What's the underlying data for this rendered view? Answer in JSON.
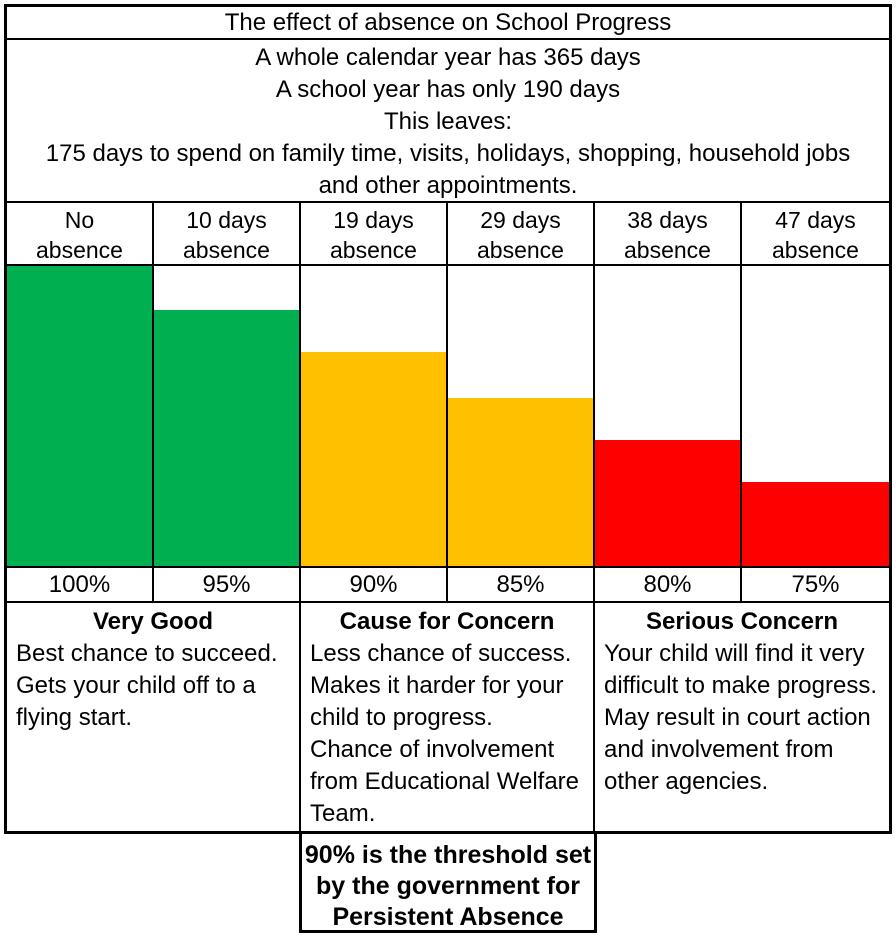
{
  "title": "The effect of absence on School Progress",
  "intro_lines": [
    "A whole calendar year has 365 days",
    "A school year has only 190 days",
    "This leaves:",
    "175 days to spend on family time, visits, holidays, shopping, household jobs",
    "and other appointments."
  ],
  "columns": [
    {
      "header_line1": "No",
      "header_line2": "absence",
      "percent": "100%",
      "bar_color": "#00B050",
      "bar_height_pct": 100
    },
    {
      "header_line1": "10 days",
      "header_line2": "absence",
      "percent": "95%",
      "bar_color": "#00B050",
      "bar_height_pct": 85.5
    },
    {
      "header_line1": "19 days",
      "header_line2": "absence",
      "percent": "90%",
      "bar_color": "#FFC000",
      "bar_height_pct": 71.5
    },
    {
      "header_line1": "29 days",
      "header_line2": "absence",
      "percent": "85%",
      "bar_color": "#FFC000",
      "bar_height_pct": 56
    },
    {
      "header_line1": "38 days",
      "header_line2": "absence",
      "percent": "80%",
      "bar_color": "#FF0000",
      "bar_height_pct": 42
    },
    {
      "header_line1": "47 days",
      "header_line2": "absence",
      "percent": "75%",
      "bar_color": "#FF0000",
      "bar_height_pct": 28
    }
  ],
  "assessments": [
    {
      "heading": "Very Good",
      "sentences": [
        "Best chance to succeed.",
        "Gets your child off to a flying start."
      ]
    },
    {
      "heading": "Cause for Concern",
      "sentences": [
        "Less chance of success.",
        "Makes it harder for your child to progress.",
        "Chance of involvement from Educational Welfare Team."
      ]
    },
    {
      "heading": "Serious Concern",
      "sentences": [
        "Your child will find it very difficult to make progress.",
        "May result in court action and involvement from other agencies."
      ]
    }
  ],
  "note_lines": [
    "90% is the threshold set",
    "by the government for",
    "Persistent Absence"
  ],
  "colors": {
    "green": "#00B050",
    "yellow": "#FFC000",
    "red": "#FF0000",
    "border": "#000000",
    "background": "#FFFFFF"
  },
  "chart_data": {
    "type": "bar",
    "title": "The effect of absence on School Progress",
    "categories": [
      "No absence",
      "10 days absence",
      "19 days absence",
      "29 days absence",
      "38 days absence",
      "47 days absence"
    ],
    "values": [
      100,
      95,
      90,
      85,
      80,
      75
    ],
    "value_labels": [
      "100%",
      "95%",
      "90%",
      "85%",
      "80%",
      "75%"
    ],
    "bar_colors": [
      "#00B050",
      "#00B050",
      "#FFC000",
      "#FFC000",
      "#FF0000",
      "#FF0000"
    ],
    "bar_height_pct_of_plot": [
      100,
      85.5,
      71.5,
      56,
      42,
      28
    ],
    "xlabel": "",
    "ylabel": "",
    "grid": false,
    "legend": false,
    "annotations": [
      "90% is the threshold set by the government for Persistent Absence",
      "Very Good: 100%-95%",
      "Cause for Concern: 90%-85%",
      "Serious Concern: 80%-75%"
    ]
  }
}
